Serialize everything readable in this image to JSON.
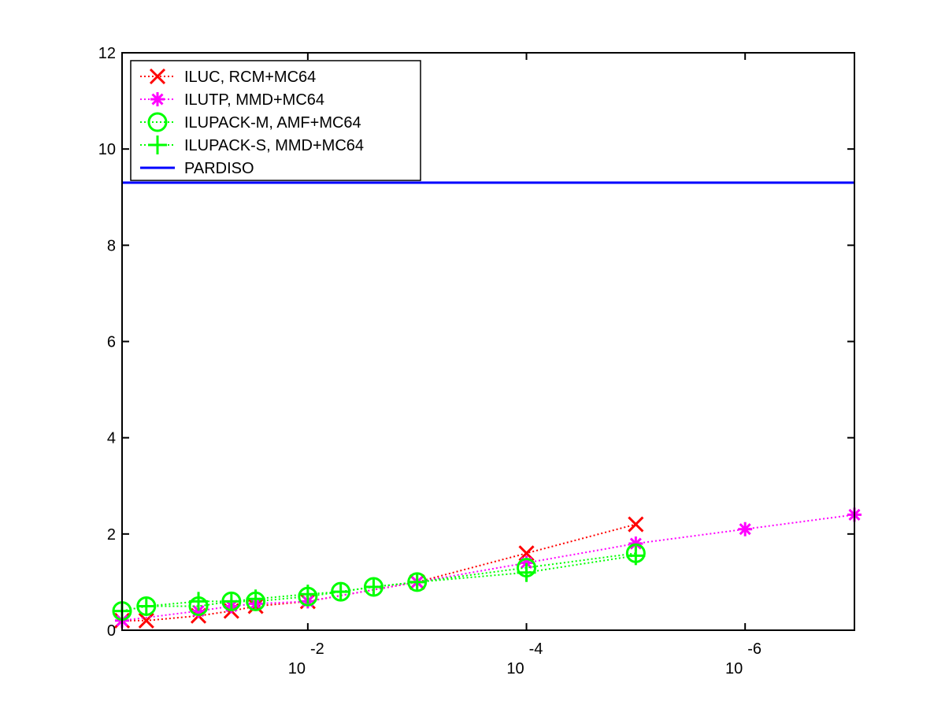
{
  "chart_data": {
    "type": "line",
    "x_scale": "log",
    "x_reversed": true,
    "xlim": [
      0.5,
      1e-07
    ],
    "ylim": [
      0,
      12
    ],
    "y_ticks": [
      0,
      2,
      4,
      6,
      8,
      10,
      12
    ],
    "y_tick_labels": [
      "0",
      "2",
      "4",
      "6",
      "8",
      "10",
      "12"
    ],
    "x_ticks": [
      0.01,
      0.0001,
      1e-06
    ],
    "x_tick_labels": [
      {
        "base": "10",
        "exponent": "-2"
      },
      {
        "base": "10",
        "exponent": "-4"
      },
      {
        "base": "10",
        "exponent": "-6"
      }
    ],
    "grid": false,
    "legend_position": "top-left",
    "series": [
      {
        "name": "ILUC, RCM+MC64",
        "color": "#ff0000",
        "marker": "x",
        "linestyle": "dotted",
        "x": [
          0.5,
          0.3,
          0.1,
          0.05,
          0.03,
          0.01,
          0.001,
          0.0001,
          1e-05
        ],
        "y": [
          0.2,
          0.2,
          0.3,
          0.4,
          0.5,
          0.6,
          1.0,
          1.6,
          2.2
        ]
      },
      {
        "name": "ILUTP, MMD+MC64",
        "color": "#ff00ff",
        "marker": "star",
        "linestyle": "dotted",
        "x": [
          0.5,
          0.1,
          0.05,
          0.03,
          0.01,
          0.001,
          0.0001,
          1e-05,
          1e-06,
          1e-07
        ],
        "y": [
          0.2,
          0.4,
          0.5,
          0.55,
          0.6,
          1.0,
          1.4,
          1.8,
          2.1,
          2.4
        ]
      },
      {
        "name": "ILUPACK-M, AMF+MC64",
        "color": "#00ff00",
        "marker": "circle",
        "linestyle": "dotted",
        "x": [
          0.5,
          0.3,
          0.1,
          0.05,
          0.03,
          0.01,
          0.005,
          0.0025,
          0.001,
          0.0001,
          1e-05
        ],
        "y": [
          0.4,
          0.5,
          0.5,
          0.6,
          0.6,
          0.7,
          0.8,
          0.9,
          1.0,
          1.3,
          1.6
        ]
      },
      {
        "name": "ILUPACK-S, MMD+MC64",
        "color": "#00ff00",
        "marker": "plus",
        "linestyle": "dotted",
        "x": [
          0.5,
          0.3,
          0.1,
          0.05,
          0.03,
          0.01,
          0.005,
          0.0025,
          0.001,
          0.0001,
          1e-05
        ],
        "y": [
          0.4,
          0.5,
          0.6,
          0.6,
          0.65,
          0.75,
          0.8,
          0.9,
          1.0,
          1.2,
          1.55
        ]
      },
      {
        "name": "PARDISO",
        "color": "#0000ff",
        "marker": "none",
        "linestyle": "solid",
        "x": [
          0.5,
          1e-07
        ],
        "y": [
          9.3,
          9.3
        ]
      }
    ]
  }
}
